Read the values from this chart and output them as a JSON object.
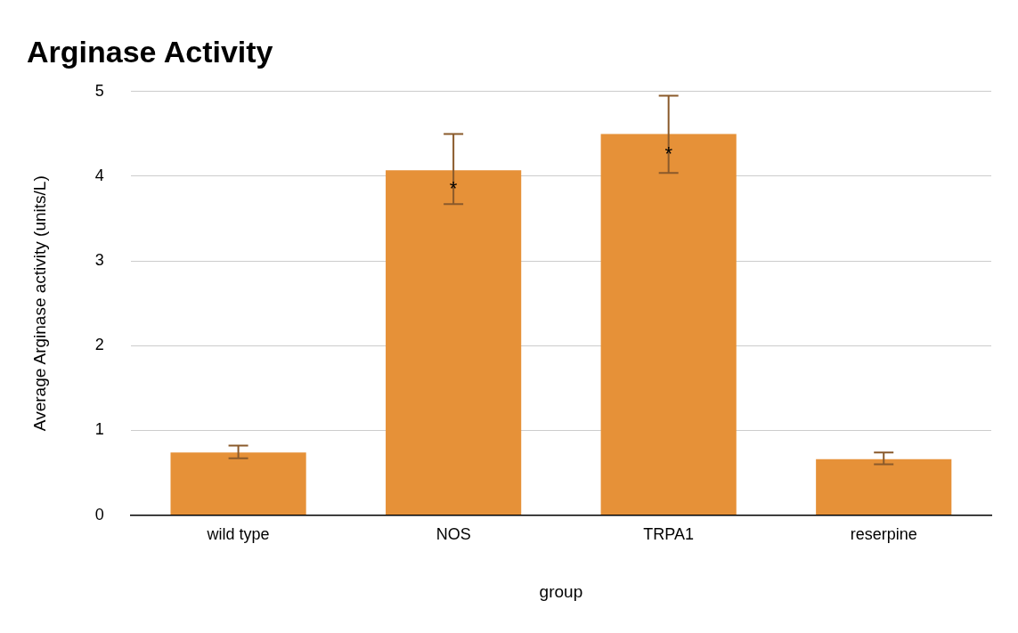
{
  "chart_data": {
    "type": "bar",
    "title": "Arginase Activity",
    "xlabel": "group",
    "ylabel": "Average Arginase activity (units/L)",
    "categories": [
      "wild type",
      "NOS",
      "TRPA1",
      "reserpine"
    ],
    "values": [
      0.74,
      4.07,
      4.5,
      0.66
    ],
    "errors": [
      [
        0.67,
        0.82
      ],
      [
        3.67,
        4.5
      ],
      [
        4.04,
        4.95
      ],
      [
        0.6,
        0.74
      ]
    ],
    "color": "#e69138",
    "ylim": [
      0,
      5
    ],
    "yticks": [
      0,
      1,
      2,
      3,
      4,
      5
    ],
    "grid": "y",
    "legend": false,
    "annotations": [
      {
        "text": "*",
        "x": "NOS",
        "y": 3.91
      },
      {
        "text": "*",
        "x": "TRPA1",
        "y": 4.32
      }
    ]
  }
}
